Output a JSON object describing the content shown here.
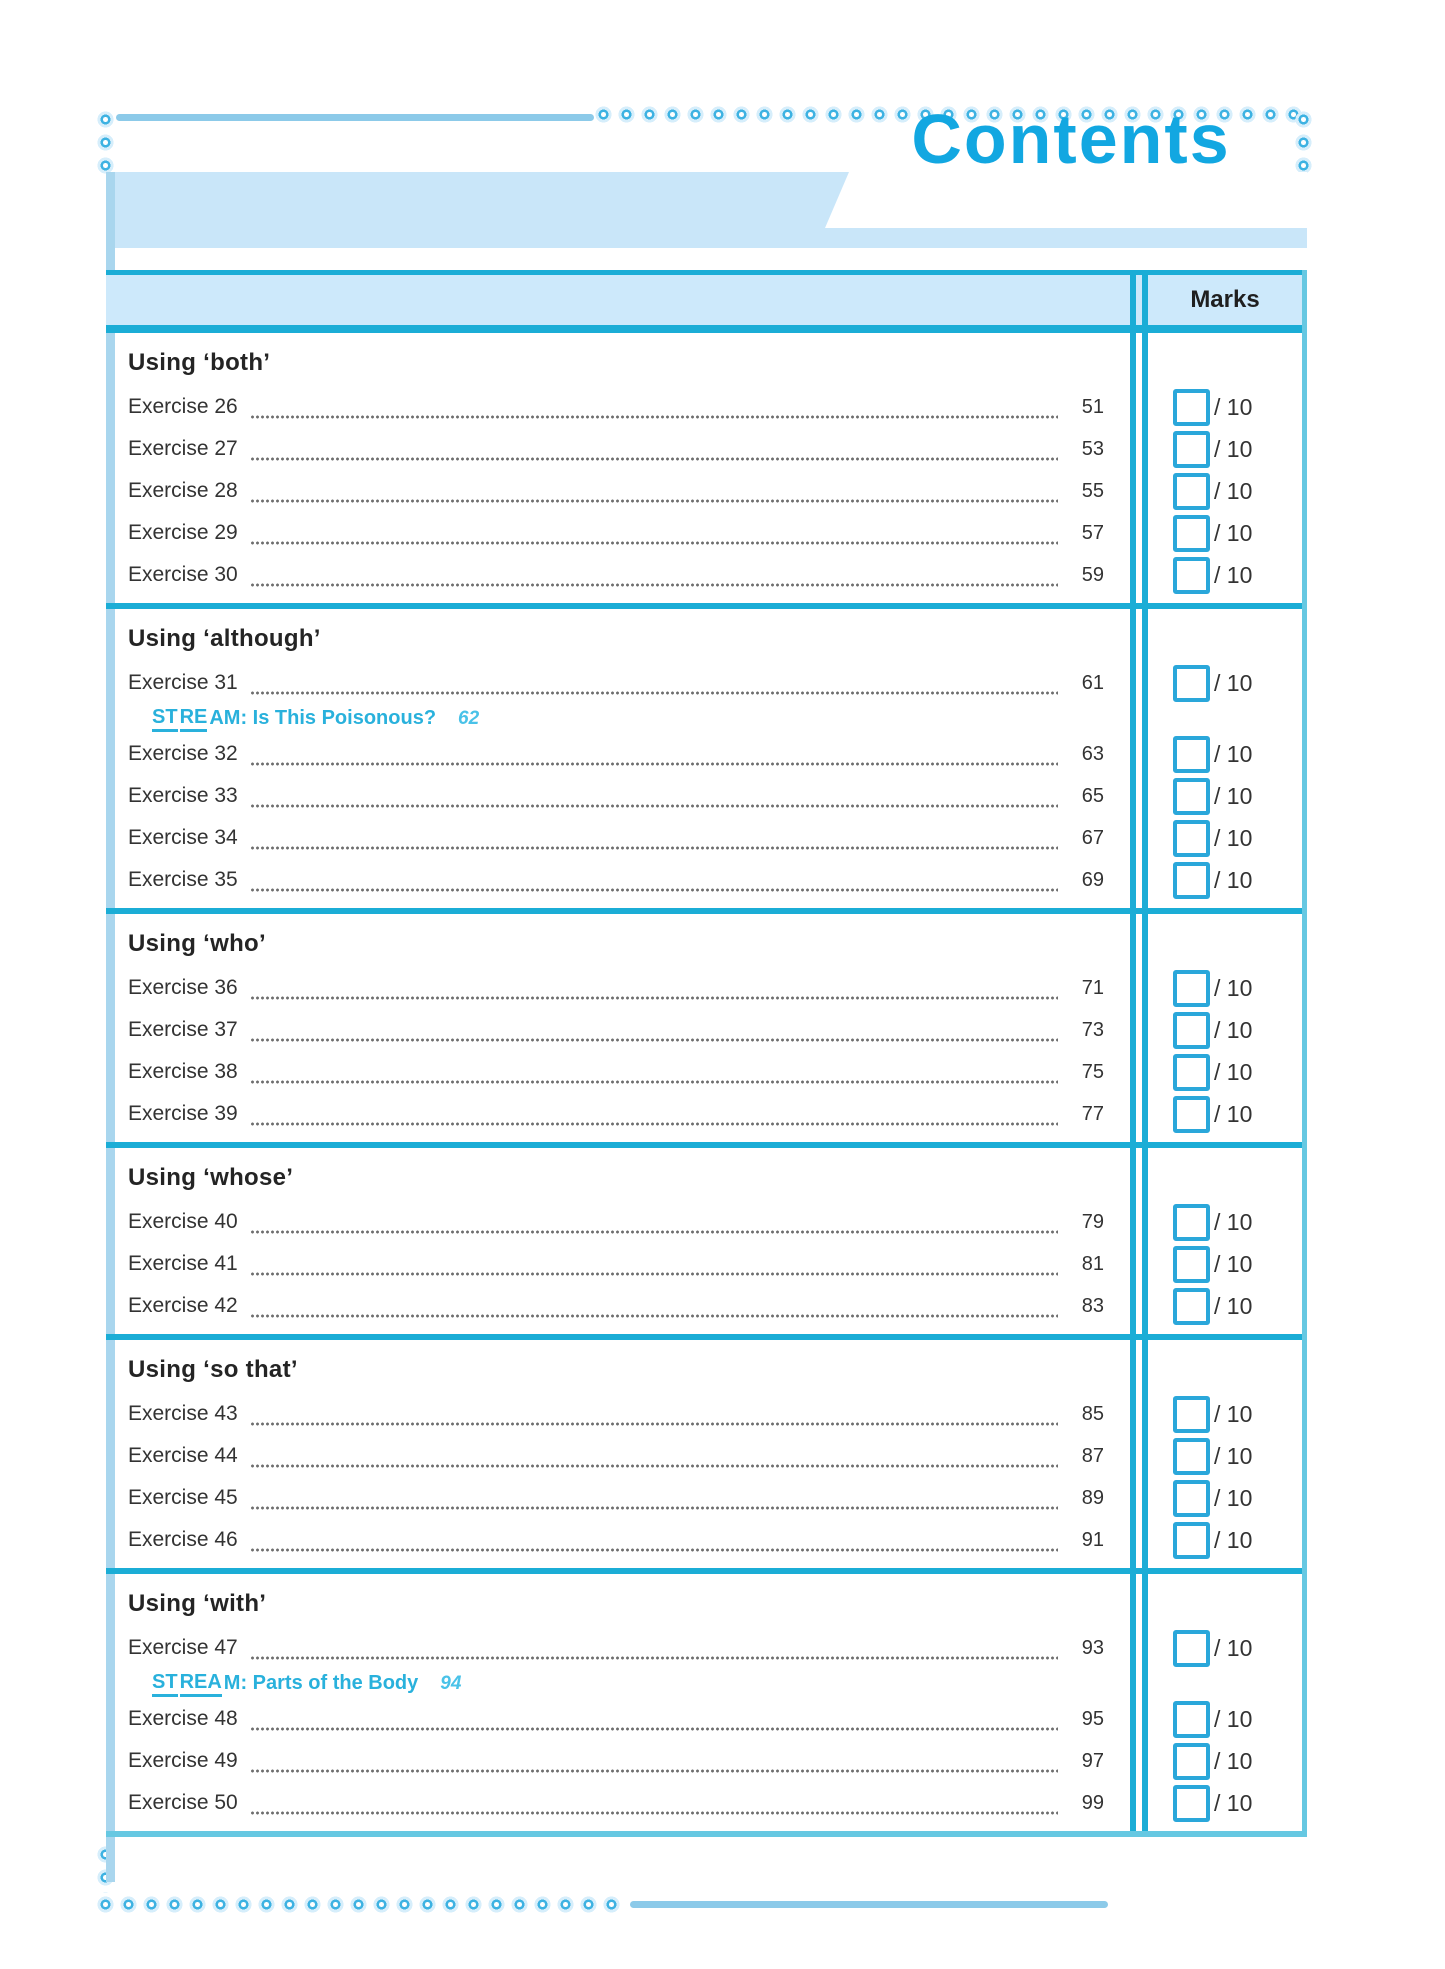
{
  "header": {
    "title": "Contents",
    "marks_label": "Marks"
  },
  "marks": {
    "out_of": "/ 10"
  },
  "colors": {
    "title_cyan": "#12a7e1",
    "table_rule": "#1badd6",
    "banner_light_blue": "#c9e6f9",
    "checkbox_border": "#2aa7da",
    "stream_cyan": "#29b1dc"
  },
  "sections": [
    {
      "heading": "Using ‘both’",
      "items": [
        {
          "type": "exercise",
          "label": "Exercise 26",
          "page": "51"
        },
        {
          "type": "exercise",
          "label": "Exercise 27",
          "page": "53"
        },
        {
          "type": "exercise",
          "label": "Exercise 28",
          "page": "55"
        },
        {
          "type": "exercise",
          "label": "Exercise 29",
          "page": "57"
        },
        {
          "type": "exercise",
          "label": "Exercise 30",
          "page": "59"
        }
      ]
    },
    {
      "heading": "Using ‘although’",
      "items": [
        {
          "type": "exercise",
          "label": "Exercise 31",
          "page": "61"
        },
        {
          "type": "stream",
          "page": "62",
          "parts": [
            {
              "text": "ST",
              "underline": true
            },
            {
              "text": "RE",
              "underline": true
            },
            {
              "text": "AM: Is This Poisonous?",
              "underline": false
            }
          ]
        },
        {
          "type": "exercise",
          "label": "Exercise 32",
          "page": "63"
        },
        {
          "type": "exercise",
          "label": "Exercise 33",
          "page": "65"
        },
        {
          "type": "exercise",
          "label": "Exercise 34",
          "page": "67"
        },
        {
          "type": "exercise",
          "label": "Exercise 35",
          "page": "69"
        }
      ]
    },
    {
      "heading": "Using ‘who’",
      "items": [
        {
          "type": "exercise",
          "label": "Exercise 36",
          "page": "71"
        },
        {
          "type": "exercise",
          "label": "Exercise 37",
          "page": "73"
        },
        {
          "type": "exercise",
          "label": "Exercise 38",
          "page": "75"
        },
        {
          "type": "exercise",
          "label": "Exercise 39",
          "page": "77"
        }
      ]
    },
    {
      "heading": "Using ‘whose’",
      "items": [
        {
          "type": "exercise",
          "label": "Exercise 40",
          "page": "79"
        },
        {
          "type": "exercise",
          "label": "Exercise 41",
          "page": "81"
        },
        {
          "type": "exercise",
          "label": "Exercise 42",
          "page": "83"
        }
      ]
    },
    {
      "heading": "Using ‘so that’",
      "items": [
        {
          "type": "exercise",
          "label": "Exercise 43",
          "page": "85"
        },
        {
          "type": "exercise",
          "label": "Exercise 44",
          "page": "87"
        },
        {
          "type": "exercise",
          "label": "Exercise 45",
          "page": "89"
        },
        {
          "type": "exercise",
          "label": "Exercise 46",
          "page": "91"
        }
      ]
    },
    {
      "heading": "Using ‘with’",
      "items": [
        {
          "type": "exercise",
          "label": "Exercise 47",
          "page": "93"
        },
        {
          "type": "stream",
          "page": "94",
          "parts": [
            {
              "text": "ST",
              "underline": true
            },
            {
              "text": "REA",
              "underline": true
            },
            {
              "text": "M: Parts of the Body",
              "underline": false
            }
          ]
        },
        {
          "type": "exercise",
          "label": "Exercise 48",
          "page": "95"
        },
        {
          "type": "exercise",
          "label": "Exercise 49",
          "page": "97"
        },
        {
          "type": "exercise",
          "label": "Exercise 50",
          "page": "99"
        }
      ]
    }
  ]
}
